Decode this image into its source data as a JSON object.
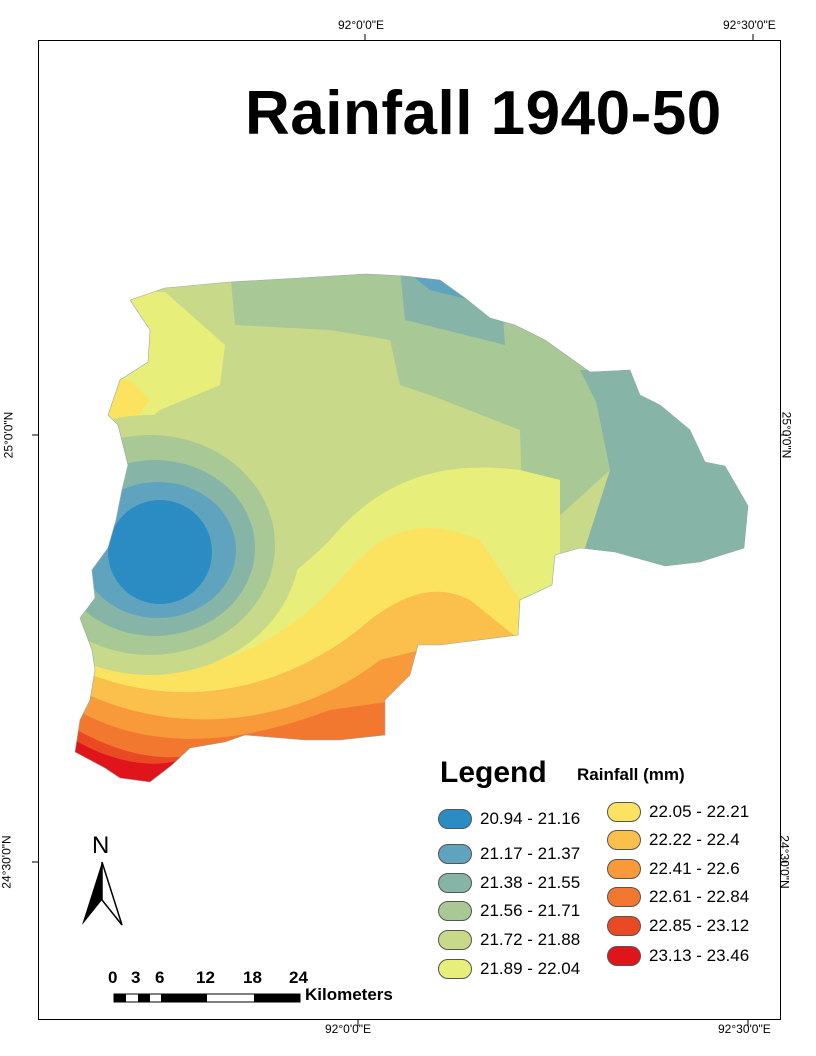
{
  "title": "Rainfall 1940-50",
  "graticule": {
    "top_labels": [
      "92°0'0\"E",
      "92°30'0\"E"
    ],
    "bottom_labels": [
      "92°0'0\"E",
      "92°30'0\"E"
    ],
    "left_labels": [
      "25°0'0\"N",
      "24°30'0\"N"
    ],
    "right_labels": [
      "25°0'0\"N",
      "24°30'0\"N"
    ]
  },
  "legend": {
    "title": "Legend",
    "subtitle": "Rainfall (mm)",
    "classes": [
      {
        "label": "20.94 - 21.16",
        "color": "#2b8cc4"
      },
      {
        "label": "21.17 - 21.37",
        "color": "#5fa3bf"
      },
      {
        "label": "21.38 - 21.55",
        "color": "#86b5a8"
      },
      {
        "label": "21.56 - 21.71",
        "color": "#a8c896"
      },
      {
        "label": "21.72 - 21.88",
        "color": "#c8d98a"
      },
      {
        "label": "21.89 - 22.04",
        "color": "#e8ee7a"
      },
      {
        "label": "22.05 - 22.21",
        "color": "#fbe35f"
      },
      {
        "label": "22.22 - 22.4",
        "color": "#fbbf4c"
      },
      {
        "label": "22.41 - 22.6",
        "color": "#f89a3a"
      },
      {
        "label": "22.61 - 22.84",
        "color": "#f2772f"
      },
      {
        "label": "22.85 - 23.12",
        "color": "#ea4a23"
      },
      {
        "label": "23.13 - 23.46",
        "color": "#e0141b"
      }
    ]
  },
  "north_arrow": {
    "label": "N",
    "icon": "north-arrow-icon"
  },
  "scale_bar": {
    "ticks": [
      "0",
      "3",
      "6",
      "12",
      "18",
      "24"
    ],
    "unit": "Kilometers"
  }
}
